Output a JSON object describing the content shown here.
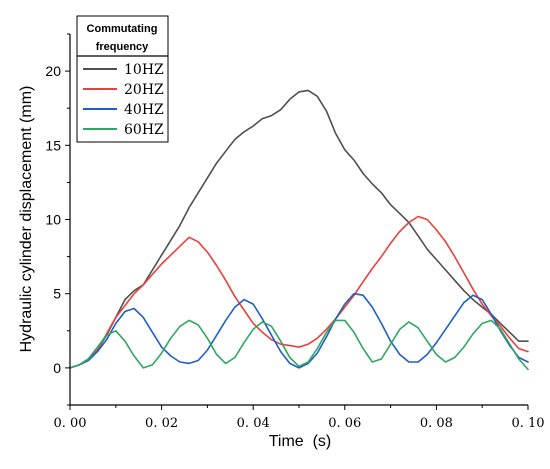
{
  "chart_data": {
    "type": "line",
    "xlabel": "Time  (s)",
    "ylabel": "Hydraulic cylinder displacement (mm)",
    "xlim": [
      0,
      0.1
    ],
    "ylim": [
      -2.5,
      22.5
    ],
    "xticks": [
      0.0,
      0.02,
      0.04,
      0.06,
      0.08,
      0.1
    ],
    "xtick_labels": [
      "0. 00",
      "0. 02",
      "0. 04",
      "0. 06",
      "0. 08",
      "0. 10"
    ],
    "yticks": [
      0,
      5,
      10,
      15,
      20
    ],
    "ytick_labels": [
      "0",
      "5",
      "10",
      "15",
      "20"
    ],
    "legend": {
      "title_line1": "Commutating",
      "title_line2": "frequency",
      "placement": "top-left"
    },
    "series": [
      {
        "name": "10HZ",
        "color": "#505050",
        "x": [
          0,
          0.002,
          0.004,
          0.006,
          0.008,
          0.01,
          0.012,
          0.014,
          0.016,
          0.018,
          0.02,
          0.022,
          0.024,
          0.026,
          0.028,
          0.03,
          0.032,
          0.034,
          0.036,
          0.038,
          0.04,
          0.042,
          0.044,
          0.046,
          0.048,
          0.05,
          0.052,
          0.054,
          0.056,
          0.058,
          0.06,
          0.062,
          0.064,
          0.066,
          0.068,
          0.07,
          0.072,
          0.074,
          0.076,
          0.078,
          0.08,
          0.082,
          0.084,
          0.086,
          0.088,
          0.09,
          0.092,
          0.094,
          0.096,
          0.098,
          0.1
        ],
        "values": [
          0,
          0.2,
          0.6,
          1.2,
          2.2,
          3.4,
          4.6,
          5.2,
          5.6,
          6.6,
          7.6,
          8.6,
          9.6,
          10.8,
          11.8,
          12.8,
          13.8,
          14.6,
          15.4,
          15.9,
          16.3,
          16.8,
          17.0,
          17.4,
          18.1,
          18.6,
          18.7,
          18.3,
          17.3,
          15.8,
          14.7,
          14.0,
          13.1,
          12.4,
          11.8,
          11.0,
          10.4,
          9.8,
          8.9,
          8.0,
          7.3,
          6.6,
          5.9,
          5.2,
          4.6,
          4.1,
          3.6,
          3.0,
          2.4,
          1.8,
          1.8
        ]
      },
      {
        "name": "20HZ",
        "color": "#e8413b",
        "x": [
          0,
          0.002,
          0.004,
          0.006,
          0.008,
          0.01,
          0.012,
          0.014,
          0.016,
          0.018,
          0.02,
          0.022,
          0.024,
          0.026,
          0.028,
          0.03,
          0.032,
          0.034,
          0.036,
          0.038,
          0.04,
          0.042,
          0.044,
          0.046,
          0.048,
          0.05,
          0.052,
          0.054,
          0.056,
          0.058,
          0.06,
          0.062,
          0.064,
          0.066,
          0.068,
          0.07,
          0.072,
          0.074,
          0.076,
          0.078,
          0.08,
          0.082,
          0.084,
          0.086,
          0.088,
          0.09,
          0.092,
          0.094,
          0.096,
          0.098,
          0.1
        ],
        "values": [
          0,
          0.2,
          0.6,
          1.2,
          2.3,
          3.4,
          4.2,
          5.0,
          5.6,
          6.3,
          7.0,
          7.6,
          8.2,
          8.8,
          8.5,
          7.8,
          6.9,
          5.9,
          4.8,
          3.9,
          3.0,
          2.4,
          1.9,
          1.6,
          1.5,
          1.4,
          1.6,
          2.0,
          2.6,
          3.3,
          4.1,
          4.9,
          5.8,
          6.7,
          7.5,
          8.4,
          9.2,
          9.8,
          10.2,
          10.0,
          9.3,
          8.5,
          7.5,
          6.4,
          5.3,
          4.3,
          3.5,
          2.8,
          2.0,
          1.3,
          1.1
        ]
      },
      {
        "name": "40HZ",
        "color": "#1f5fc6",
        "x": [
          0,
          0.002,
          0.004,
          0.006,
          0.008,
          0.01,
          0.012,
          0.014,
          0.016,
          0.018,
          0.02,
          0.022,
          0.024,
          0.026,
          0.028,
          0.03,
          0.032,
          0.034,
          0.036,
          0.038,
          0.04,
          0.042,
          0.044,
          0.046,
          0.048,
          0.05,
          0.052,
          0.054,
          0.056,
          0.058,
          0.06,
          0.062,
          0.064,
          0.066,
          0.068,
          0.07,
          0.072,
          0.074,
          0.076,
          0.078,
          0.08,
          0.082,
          0.084,
          0.086,
          0.088,
          0.09,
          0.092,
          0.094,
          0.096,
          0.098,
          0.1
        ],
        "values": [
          0,
          0.2,
          0.5,
          1.1,
          1.9,
          3.0,
          3.8,
          4.0,
          3.4,
          2.4,
          1.4,
          0.8,
          0.4,
          0.3,
          0.5,
          1.2,
          2.2,
          3.2,
          4.1,
          4.6,
          4.3,
          3.3,
          2.2,
          1.1,
          0.3,
          0.0,
          0.3,
          1.0,
          2.1,
          3.3,
          4.3,
          5.0,
          4.9,
          4.1,
          3.0,
          1.8,
          0.9,
          0.4,
          0.4,
          0.9,
          1.7,
          2.6,
          3.5,
          4.4,
          4.9,
          4.6,
          3.6,
          2.5,
          1.5,
          0.7,
          0.4
        ]
      },
      {
        "name": "60HZ",
        "color": "#2ea860",
        "x": [
          0,
          0.002,
          0.004,
          0.006,
          0.008,
          0.01,
          0.012,
          0.014,
          0.016,
          0.018,
          0.02,
          0.022,
          0.024,
          0.026,
          0.028,
          0.03,
          0.032,
          0.034,
          0.036,
          0.038,
          0.04,
          0.042,
          0.044,
          0.046,
          0.048,
          0.05,
          0.052,
          0.054,
          0.056,
          0.058,
          0.06,
          0.062,
          0.064,
          0.066,
          0.068,
          0.07,
          0.072,
          0.074,
          0.076,
          0.078,
          0.08,
          0.082,
          0.084,
          0.086,
          0.088,
          0.09,
          0.092,
          0.094,
          0.096,
          0.098,
          0.1
        ],
        "values": [
          0,
          0.2,
          0.6,
          1.4,
          2.2,
          2.5,
          1.8,
          0.8,
          0.0,
          0.2,
          1.0,
          2.0,
          2.8,
          3.2,
          2.9,
          2.0,
          0.9,
          0.3,
          0.7,
          1.7,
          2.6,
          3.1,
          2.8,
          1.8,
          0.7,
          0.1,
          0.4,
          1.3,
          2.4,
          3.2,
          3.2,
          2.4,
          1.3,
          0.4,
          0.6,
          1.6,
          2.6,
          3.1,
          2.7,
          1.8,
          0.9,
          0.4,
          0.7,
          1.4,
          2.3,
          3.0,
          3.2,
          2.6,
          1.6,
          0.6,
          -0.1
        ]
      }
    ]
  }
}
